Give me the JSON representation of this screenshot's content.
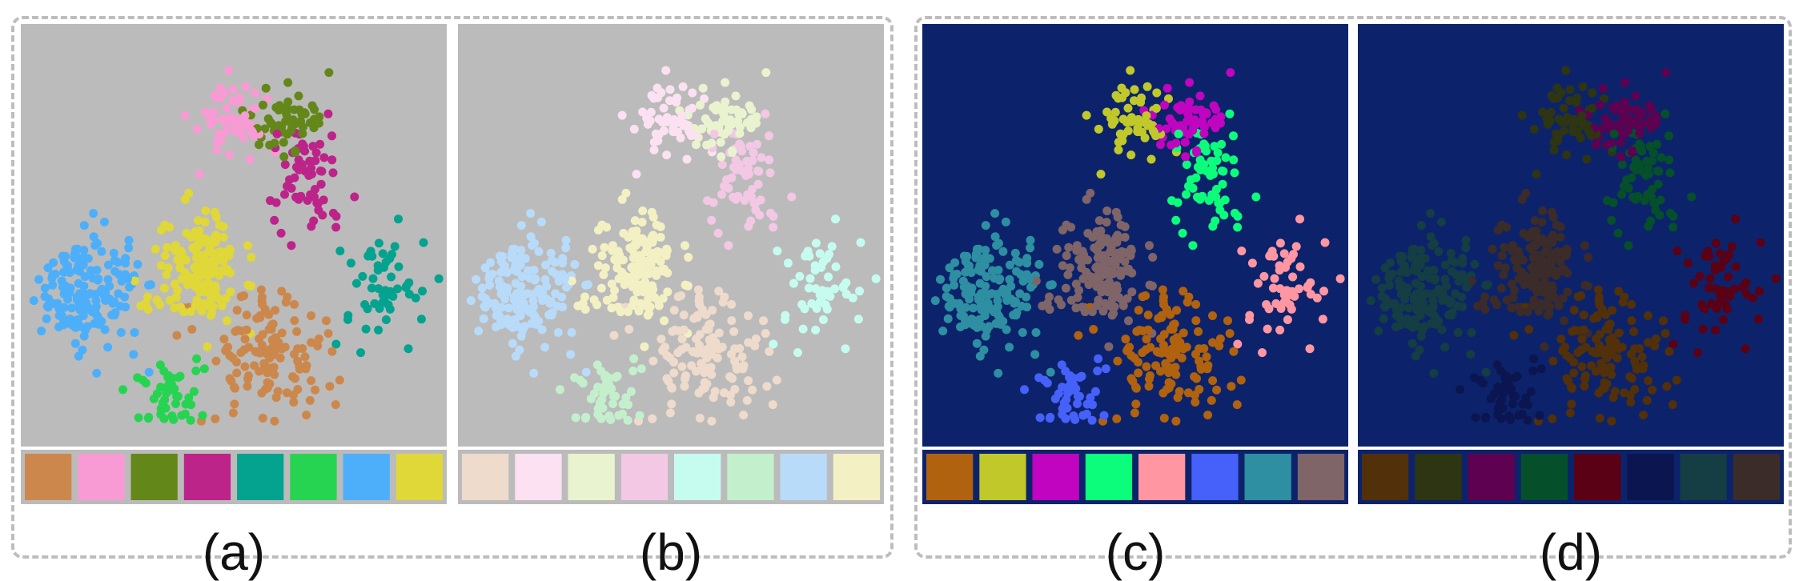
{
  "panels": [
    {
      "label": "(a)",
      "background": "#bbbbbb",
      "palette": [
        "#cc884c",
        "#f89bd4",
        "#648719",
        "#bc2489",
        "#03a38f",
        "#27d451",
        "#4daff9",
        "#e0d739"
      ]
    },
    {
      "label": "(b)",
      "background": "#bbbbbb",
      "palette": [
        "#efdbcb",
        "#fbe1f1",
        "#eaf3cf",
        "#f2c8e4",
        "#c6fcf0",
        "#c4efcc",
        "#b8dbfa",
        "#f3f0c4"
      ]
    },
    {
      "label": "(c)",
      "background": "#0c236b",
      "palette": [
        "#b0620e",
        "#c0c82a",
        "#c004c0",
        "#0cfc7b",
        "#ff96a2",
        "#4660fa",
        "#2d8fa1",
        "#7f6468"
      ]
    },
    {
      "label": "(d)",
      "background": "#0c236b",
      "palette": [
        "#51300a",
        "#2e3512",
        "#5e0150",
        "#054f2b",
        "#5a0115",
        "#0b1550",
        "#143d44",
        "#3b2b29"
      ]
    }
  ],
  "chart_data": {
    "type": "scatter",
    "x_range": [
      0,
      100
    ],
    "y_range": [
      0,
      100
    ],
    "grid": false,
    "legend": "none",
    "clusters": [
      {
        "palette_index": 0,
        "center": [
          58,
          22
        ],
        "spread": [
          6.5,
          7.5
        ],
        "count": 130
      },
      {
        "palette_index": 1,
        "center": [
          50,
          78
        ],
        "spread": [
          4.5,
          4.5
        ],
        "count": 55
      },
      {
        "palette_index": 2,
        "center": [
          63,
          77
        ],
        "spread": [
          5,
          4.5
        ],
        "count": 55
      },
      {
        "palette_index": 3,
        "center": [
          68,
          62
        ],
        "spread": [
          5,
          6
        ],
        "count": 60
      },
      {
        "palette_index": 4,
        "center": [
          86,
          38
        ],
        "spread": [
          5,
          7
        ],
        "count": 55
      },
      {
        "palette_index": 5,
        "center": [
          35,
          12
        ],
        "spread": [
          4,
          3.5
        ],
        "count": 45
      },
      {
        "palette_index": 6,
        "center": [
          15,
          37
        ],
        "spread": [
          6,
          7
        ],
        "count": 160
      },
      {
        "palette_index": 7,
        "center": [
          42,
          42
        ],
        "spread": [
          5,
          6
        ],
        "count": 140
      }
    ]
  }
}
